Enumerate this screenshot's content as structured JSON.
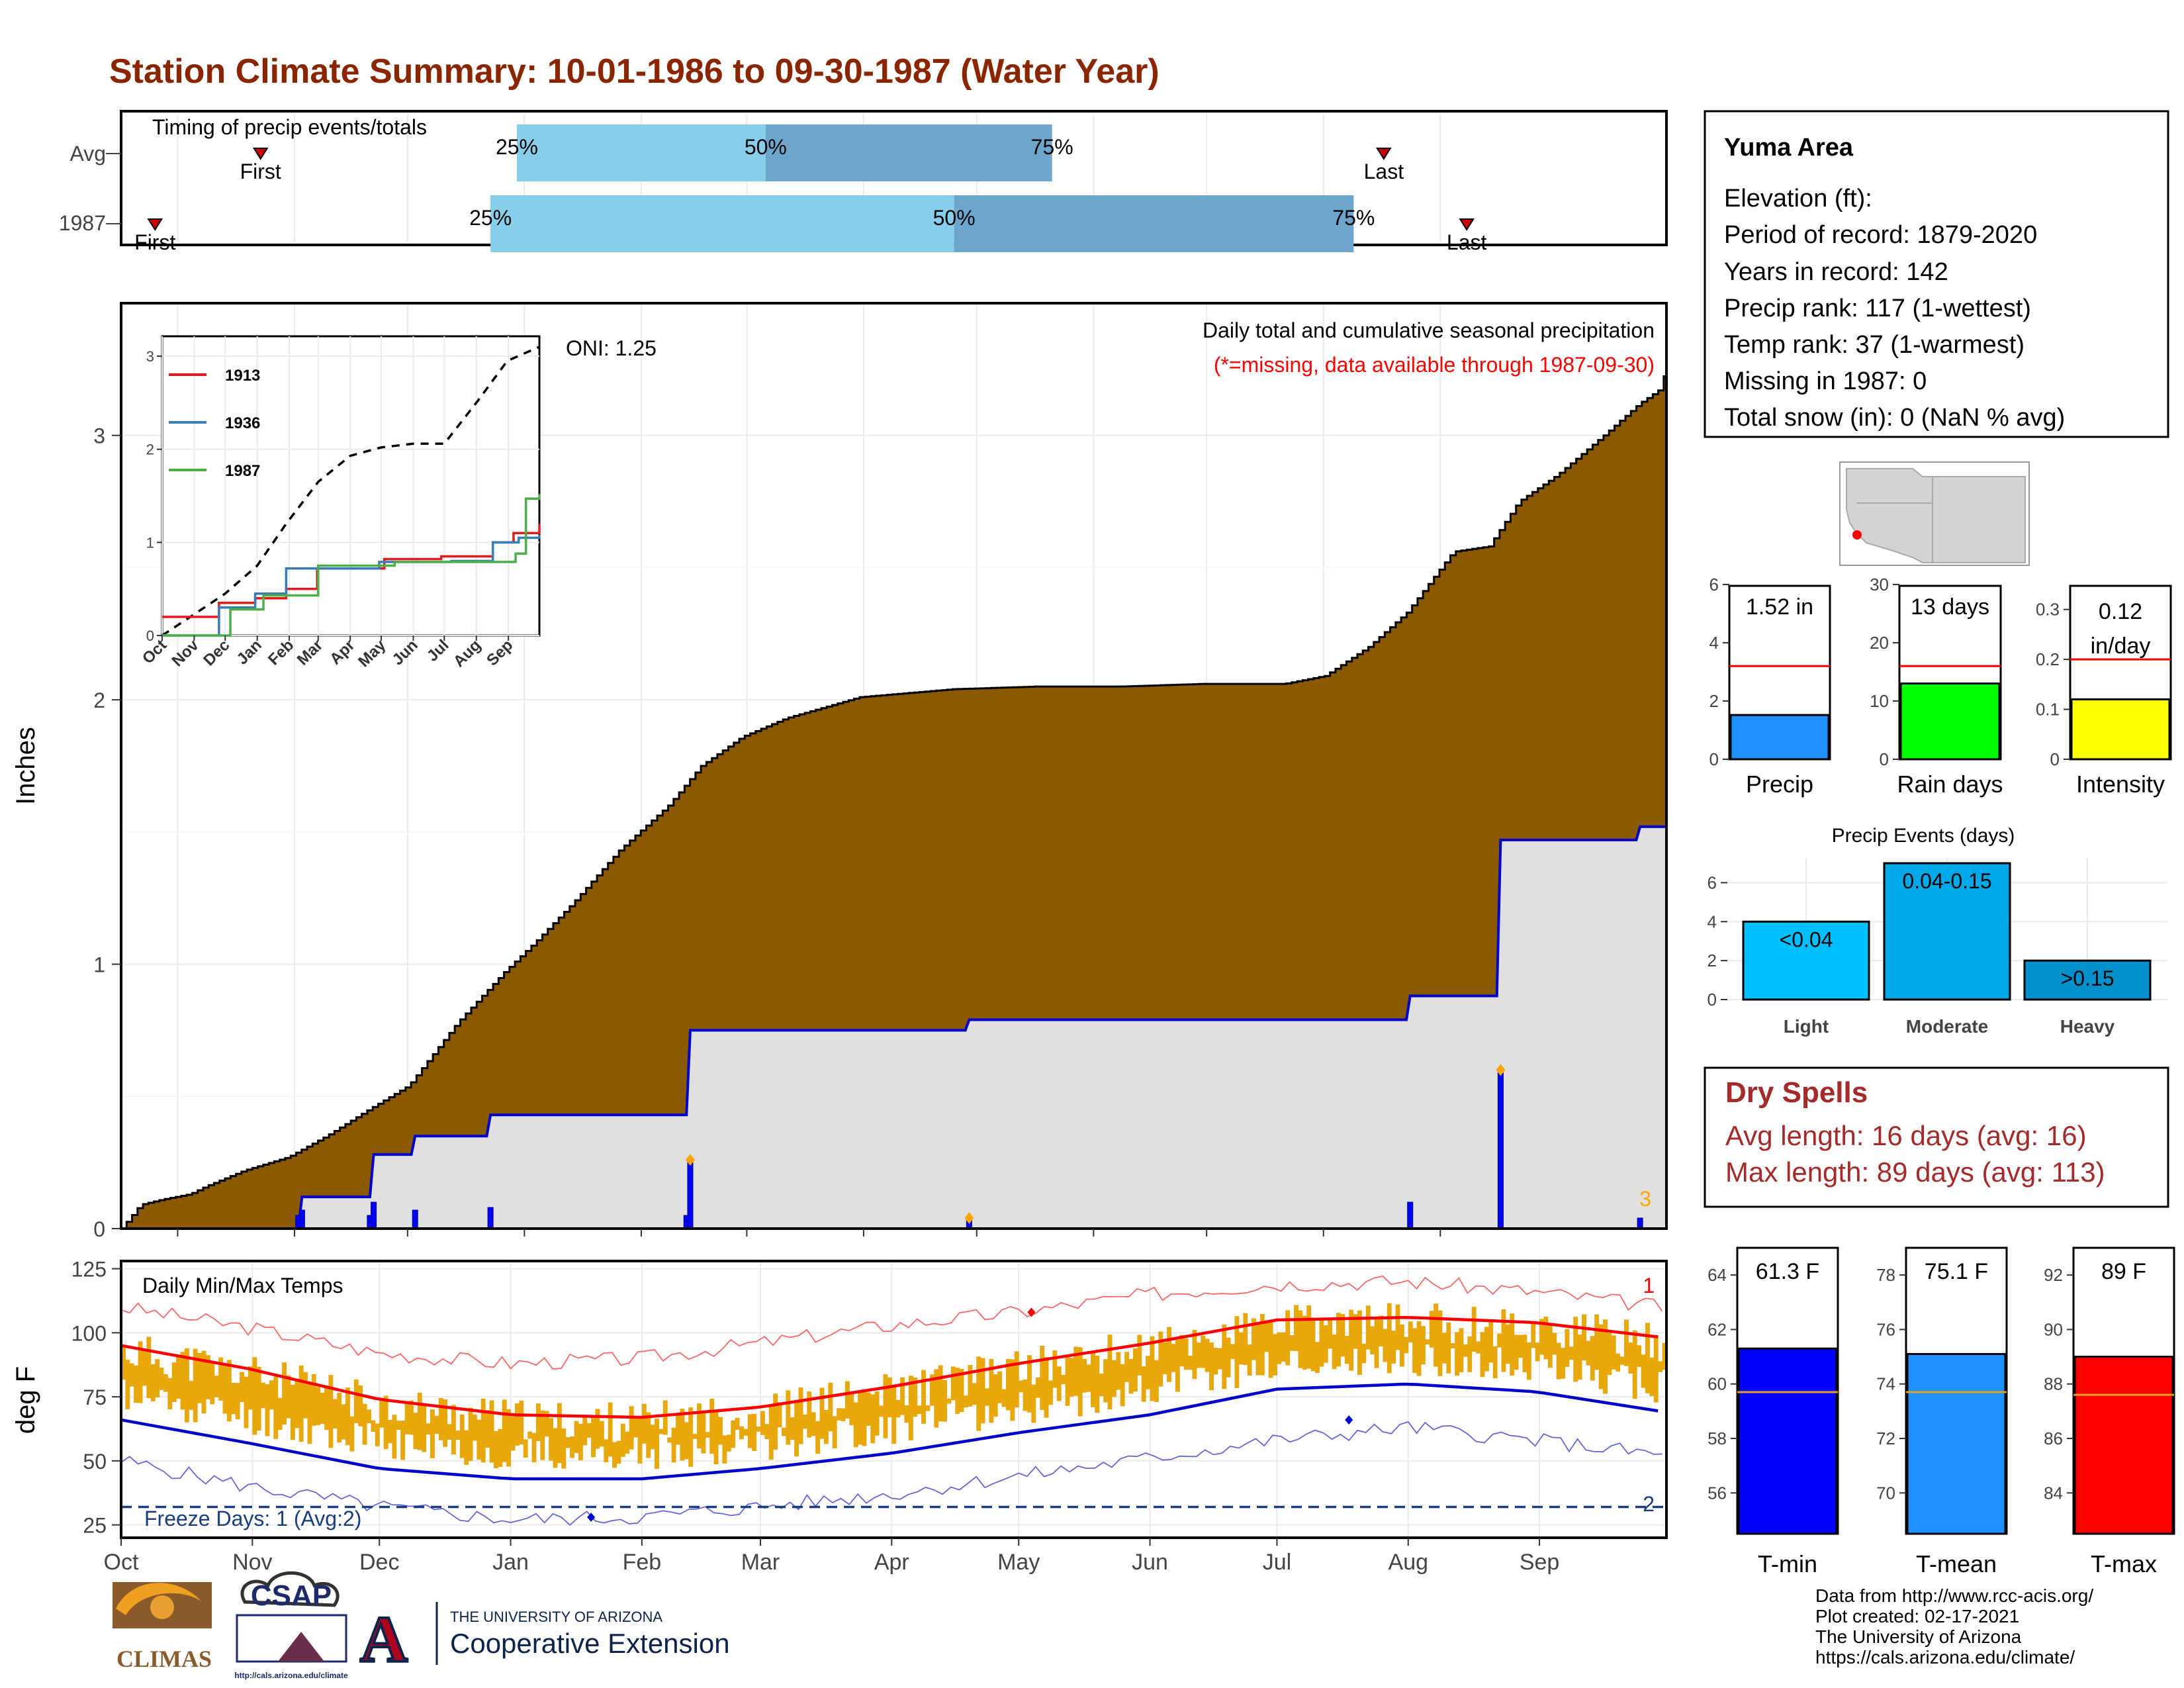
{
  "header": {
    "title": "Station Climate Summary: 10-01-1986 to 09-30-1987 (Water Year)"
  },
  "timing": {
    "label": "Timing of precip events/totals",
    "rows": [
      "Avg",
      "1987"
    ],
    "pct_labels": [
      "25%",
      "50%",
      "75%"
    ],
    "first_label": "First",
    "last_label": "Last"
  },
  "main_panel": {
    "ylabel": "Inches",
    "note": "Daily total and cumulative seasonal precipitation",
    "missing_note": "(*=missing, data available through 1987-09-30)",
    "oni": "ONI: 1.25",
    "corner_count": "3"
  },
  "temp_panel": {
    "ylabel": "deg F",
    "label": "Daily Min/Max Temps",
    "freeze": "Freeze Days: 1 (Avg:2)",
    "count_top": "1",
    "count_bottom": "2"
  },
  "info": {
    "station": "Yuma Area",
    "lines": [
      "Elevation (ft):",
      "Period of record: 1879-2020",
      "Years in record: 142",
      "Precip rank: 117 (1-wettest)",
      "Temp rank: 37 (1-warmest)",
      "Missing in 1987: 0",
      "Total snow (in): 0 (NaN % avg)"
    ]
  },
  "dry_spells": {
    "title": "Dry Spells",
    "avg": "Avg length: 16 days (avg: 16)",
    "max": "Max length: 89 days (avg: 113)"
  },
  "footer": {
    "credits": [
      "Data from http://www.rcc-acis.org/",
      "Plot created: 02-17-2021",
      "The University of Arizona",
      "https://cals.arizona.edu/climate/"
    ],
    "logo_climas": "CLIMAS",
    "logo_csap": "CSAP",
    "logo_csap_url": "http://cals.arizona.edu/climate",
    "ua_small": "THE UNIVERSITY OF ARIZONA",
    "ua_big": "Cooperative Extension"
  },
  "colors": {
    "title": "#8B2500",
    "cumulative_fill": "#8B5A00",
    "daily_bar": "#0000FF",
    "avg_line": "#0000CC",
    "light_q": "#87CEEB",
    "dark_q": "#6CA6CD",
    "record_high": "#FF0000",
    "temp_range": "#E8A80C",
    "dry_spells": "#A52A2A"
  },
  "chart_data": [
    {
      "id": "timing",
      "type": "bar",
      "x_months": [
        "Oct",
        "Nov",
        "Dec",
        "Jan",
        "Feb",
        "Mar",
        "Apr",
        "May",
        "Jun",
        "Jul",
        "Aug",
        "Sep"
      ],
      "rows": [
        {
          "name": "Avg",
          "first_day": 37,
          "q25": 105,
          "q50": 171,
          "q75": 247,
          "last_day": 335
        },
        {
          "name": "1987",
          "first_day": 9,
          "q25": 98,
          "q50": 221,
          "q75": 327,
          "last_day": 357
        }
      ]
    },
    {
      "id": "cumulative_precip",
      "type": "area",
      "x_months": [
        "Oct",
        "Nov",
        "Dec",
        "Jan",
        "Feb",
        "Mar",
        "Apr",
        "May",
        "Jun",
        "Jul",
        "Aug",
        "Sep"
      ],
      "ylim": [
        0,
        3.5
      ],
      "yticks": [
        0,
        1,
        2,
        3
      ],
      "ylabel": "Inches",
      "avg_cumulative": [
        [
          0,
          0
        ],
        [
          7,
          0.09
        ],
        [
          15,
          0.11
        ],
        [
          25,
          0.13
        ],
        [
          31,
          0.16
        ],
        [
          45,
          0.22
        ],
        [
          61,
          0.27
        ],
        [
          75,
          0.35
        ],
        [
          92,
          0.46
        ],
        [
          105,
          0.54
        ],
        [
          123,
          0.78
        ],
        [
          140,
          0.97
        ],
        [
          151,
          1.08
        ],
        [
          165,
          1.23
        ],
        [
          182,
          1.43
        ],
        [
          200,
          1.6
        ],
        [
          212,
          1.75
        ],
        [
          227,
          1.86
        ],
        [
          243,
          1.93
        ],
        [
          270,
          2.01
        ],
        [
          304,
          2.04
        ],
        [
          334,
          2.05
        ],
        [
          365,
          2.05
        ],
        [
          395,
          2.06
        ],
        [
          425,
          2.06
        ],
        [
          440,
          2.09
        ],
        [
          456,
          2.2
        ],
        [
          470,
          2.33
        ],
        [
          487,
          2.56
        ],
        [
          500,
          2.58
        ],
        [
          511,
          2.75
        ],
        [
          525,
          2.85
        ],
        [
          542,
          3.0
        ],
        [
          555,
          3.12
        ],
        [
          562,
          3.17
        ],
        [
          565,
          3.25
        ]
      ],
      "year_cumulative": [
        [
          0,
          0
        ],
        [
          47,
          0
        ],
        [
          48,
          0.12
        ],
        [
          66,
          0.12
        ],
        [
          67,
          0.28
        ],
        [
          77,
          0.28
        ],
        [
          78,
          0.35
        ],
        [
          97,
          0.35
        ],
        [
          98,
          0.43
        ],
        [
          150,
          0.43
        ],
        [
          151,
          0.75
        ],
        [
          224,
          0.75
        ],
        [
          225,
          0.79
        ],
        [
          341,
          0.79
        ],
        [
          342,
          0.88
        ],
        [
          365,
          0.88
        ],
        [
          366,
          1.47
        ],
        [
          402,
          1.47
        ],
        [
          403,
          1.52
        ],
        [
          410,
          1.52
        ]
      ],
      "daily_bars": [
        [
          47,
          0.05
        ],
        [
          48,
          0.07
        ],
        [
          66,
          0.05
        ],
        [
          67,
          0.1
        ],
        [
          78,
          0.07
        ],
        [
          98,
          0.08
        ],
        [
          150,
          0.05
        ],
        [
          151,
          0.25
        ],
        [
          225,
          0.04
        ],
        [
          342,
          0.1
        ],
        [
          366,
          0.59
        ],
        [
          403,
          0.04
        ]
      ],
      "flags": [
        [
          151,
          0.26
        ],
        [
          225,
          0.04
        ],
        [
          366,
          0.6
        ]
      ]
    },
    {
      "id": "inset_cumulative",
      "type": "line",
      "x_months": [
        "Oct",
        "Nov",
        "Dec",
        "Jan",
        "Feb",
        "Mar",
        "Apr",
        "May",
        "Jun",
        "Jul",
        "Aug",
        "Sep"
      ],
      "ylim": [
        0,
        3.1
      ],
      "yticks": [
        0,
        1,
        2,
        3
      ],
      "series": [
        {
          "name": "1913",
          "color": "#E41A1C",
          "points": [
            [
              0,
              0.2
            ],
            [
              30,
              0.2
            ],
            [
              55,
              0.35
            ],
            [
              90,
              0.4
            ],
            [
              120,
              0.5
            ],
            [
              150,
              0.72
            ],
            [
              215,
              0.82
            ],
            [
              270,
              0.85
            ],
            [
              320,
              1.0
            ],
            [
              340,
              1.1
            ],
            [
              365,
              1.2
            ]
          ]
        },
        {
          "name": "1936",
          "color": "#377EB8",
          "points": [
            [
              0,
              0.0
            ],
            [
              40,
              0.0
            ],
            [
              55,
              0.3
            ],
            [
              90,
              0.45
            ],
            [
              120,
              0.72
            ],
            [
              210,
              0.79
            ],
            [
              280,
              0.8
            ],
            [
              320,
              1.0
            ],
            [
              345,
              1.05
            ],
            [
              365,
              1.08
            ]
          ]
        },
        {
          "name": "1987",
          "color": "#4DAF4A",
          "points": [
            [
              0,
              0.0
            ],
            [
              47,
              0.0
            ],
            [
              66,
              0.28
            ],
            [
              98,
              0.43
            ],
            [
              151,
              0.75
            ],
            [
              225,
              0.79
            ],
            [
              341,
              0.79
            ],
            [
              342,
              0.88
            ],
            [
              352,
              1.47
            ],
            [
              365,
              1.52
            ]
          ]
        }
      ],
      "avg_points": [
        [
          0,
          0
        ],
        [
          30,
          0.22
        ],
        [
          61,
          0.45
        ],
        [
          92,
          0.75
        ],
        [
          120,
          1.2
        ],
        [
          151,
          1.65
        ],
        [
          182,
          1.93
        ],
        [
          212,
          2.02
        ],
        [
          243,
          2.06
        ],
        [
          273,
          2.06
        ],
        [
          304,
          2.5
        ],
        [
          334,
          2.95
        ],
        [
          365,
          3.1
        ]
      ]
    },
    {
      "id": "temps",
      "type": "line",
      "x_months": [
        "Oct",
        "Nov",
        "Dec",
        "Jan",
        "Feb",
        "Mar",
        "Apr",
        "May",
        "Jun",
        "Jul",
        "Aug",
        "Sep"
      ],
      "ylim": [
        20,
        128
      ],
      "yticks": [
        25,
        50,
        75,
        100,
        125
      ],
      "ylabel": "deg F",
      "avg_max": [
        [
          0,
          95
        ],
        [
          30,
          86
        ],
        [
          61,
          74
        ],
        [
          92,
          68
        ],
        [
          123,
          67
        ],
        [
          151,
          71
        ],
        [
          182,
          79
        ],
        [
          212,
          88
        ],
        [
          243,
          96
        ],
        [
          273,
          105
        ],
        [
          304,
          106
        ],
        [
          334,
          104
        ],
        [
          365,
          98
        ]
      ],
      "avg_min": [
        [
          0,
          66
        ],
        [
          30,
          57
        ],
        [
          61,
          47
        ],
        [
          92,
          43
        ],
        [
          123,
          43
        ],
        [
          151,
          47
        ],
        [
          182,
          53
        ],
        [
          212,
          61
        ],
        [
          243,
          68
        ],
        [
          273,
          78
        ],
        [
          304,
          80
        ],
        [
          334,
          77
        ],
        [
          365,
          69
        ]
      ],
      "record_high": [
        [
          0,
          110
        ],
        [
          30,
          102
        ],
        [
          61,
          92
        ],
        [
          92,
          88
        ],
        [
          123,
          90
        ],
        [
          151,
          96
        ],
        [
          182,
          103
        ],
        [
          212,
          108
        ],
        [
          243,
          115
        ],
        [
          273,
          119
        ],
        [
          304,
          120
        ],
        [
          334,
          116
        ],
        [
          365,
          110
        ]
      ],
      "record_low": [
        [
          0,
          50
        ],
        [
          30,
          40
        ],
        [
          61,
          32
        ],
        [
          92,
          27
        ],
        [
          123,
          28
        ],
        [
          151,
          32
        ],
        [
          182,
          37
        ],
        [
          212,
          44
        ],
        [
          243,
          51
        ],
        [
          273,
          58
        ],
        [
          304,
          63
        ],
        [
          334,
          58
        ],
        [
          365,
          52
        ]
      ],
      "freeze_line": 32
    },
    {
      "id": "totals",
      "type": "bar",
      "categories": [
        "Precip",
        "Rain days",
        "Intensity"
      ],
      "labels": [
        "1.52 in",
        "13 days",
        "0.12 in/day"
      ],
      "values": [
        1.52,
        13,
        0.12
      ],
      "averages": [
        3.2,
        16,
        0.2
      ],
      "ylims": [
        [
          0,
          6
        ],
        [
          0,
          30
        ],
        [
          0,
          0.35
        ]
      ],
      "yticks": [
        [
          0,
          2,
          4,
          6
        ],
        [
          0,
          10,
          20,
          30
        ],
        [
          0.0,
          0.1,
          0.2,
          0.3
        ]
      ],
      "colors": [
        "#1E90FF",
        "#00FF00",
        "#FFFF00"
      ]
    },
    {
      "id": "precip_events",
      "type": "bar",
      "title": "Precip Events (days)",
      "categories": [
        "Light",
        "Moderate",
        "Heavy"
      ],
      "labels": [
        "<0.04",
        "0.04-0.15",
        ">0.15"
      ],
      "values": [
        4,
        7,
        2
      ],
      "ylim": [
        0,
        7
      ],
      "yticks": [
        0,
        2,
        4,
        6
      ],
      "colors": [
        "#00BFFF",
        "#00A8E8",
        "#0090CC"
      ]
    },
    {
      "id": "temp_means",
      "type": "bar",
      "categories": [
        "T-min",
        "T-mean",
        "T-max"
      ],
      "labels": [
        "61.3 F",
        "75.1 F",
        "89 F"
      ],
      "values": [
        61.3,
        75.1,
        89
      ],
      "averages": [
        59.7,
        73.7,
        87.6
      ],
      "ylims": [
        [
          54.5,
          65
        ],
        [
          68.5,
          79
        ],
        [
          82.5,
          93
        ]
      ],
      "yticks": [
        [
          56,
          58,
          60,
          62,
          64
        ],
        [
          70,
          72,
          74,
          76,
          78
        ],
        [
          84,
          86,
          88,
          90,
          92
        ]
      ],
      "colors": [
        "#0000FF",
        "#1E90FF",
        "#FF0000"
      ]
    }
  ]
}
